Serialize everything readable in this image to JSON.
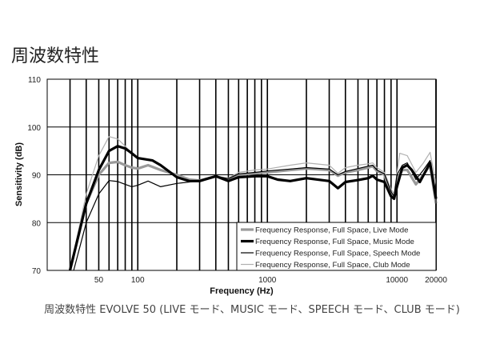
{
  "page_title": "周波数特性",
  "caption": "周波数特性 EVOLVE 50 (LIVE モード、MUSIC モード、SPEECH モード、CLUB モード)",
  "chart_data": {
    "type": "line",
    "title": "",
    "xlabel": "Frequency (Hz)",
    "ylabel": "Sensitivity (dB)",
    "xscale": "log",
    "xlim": [
      20,
      20000
    ],
    "ylim": [
      70,
      110
    ],
    "x_tick_labels": [
      "50",
      "100",
      "1000",
      "10000",
      "20000"
    ],
    "x_ticks": [
      50,
      100,
      1000,
      10000,
      20000
    ],
    "y_ticks": [
      70,
      80,
      90,
      100,
      110
    ],
    "grid": true,
    "legend_placement": "bottom-right",
    "series": [
      {
        "name": "Frequency Response, Full Space, Live Mode",
        "color": "#9a9a9a",
        "style": "thick",
        "x": [
          30,
          40,
          50,
          60,
          70,
          80,
          90,
          100,
          120,
          150,
          200,
          250,
          300,
          400,
          500,
          600,
          800,
          1000,
          1500,
          2000,
          3000,
          3500,
          4000,
          5000,
          6000,
          6500,
          7000,
          8000,
          9000,
          9500,
          10000,
          11000,
          12000,
          14000,
          16000,
          18000,
          20000
        ],
        "y": [
          70,
          84,
          90,
          92.5,
          92.7,
          92,
          91.5,
          91.3,
          92,
          91,
          90,
          89,
          88.8,
          89.7,
          89,
          90,
          90.3,
          90.5,
          91,
          91.3,
          91,
          89.8,
          90.5,
          91,
          91.5,
          91.8,
          90.8,
          90,
          86,
          85,
          89,
          91,
          91,
          88,
          90,
          92,
          84
        ]
      },
      {
        "name": "Frequency Response, Full Space, Music Mode",
        "color": "#000000",
        "style": "thick",
        "x": [
          30,
          40,
          50,
          60,
          70,
          80,
          90,
          100,
          130,
          150,
          200,
          250,
          300,
          400,
          500,
          600,
          800,
          1000,
          1200,
          1500,
          2000,
          3000,
          3500,
          4000,
          5000,
          6000,
          6500,
          7000,
          8000,
          9000,
          9500,
          10000,
          11000,
          12000,
          13000,
          15000,
          18000,
          20000
        ],
        "y": [
          70,
          84,
          91,
          95,
          96,
          95.5,
          94.5,
          93.5,
          93,
          92,
          89.5,
          88.7,
          88.7,
          89.7,
          88.7,
          89.5,
          89.7,
          89.7,
          89,
          88.7,
          89.3,
          88.7,
          87.2,
          88.5,
          88.9,
          89.3,
          89.8,
          89,
          88.5,
          85.5,
          85,
          87.5,
          91.5,
          92,
          91,
          88.5,
          92.5,
          85
        ]
      },
      {
        "name": "Frequency Response, Full Space, Speech Mode",
        "color": "#000000",
        "style": "thin",
        "x": [
          32,
          40,
          50,
          60,
          70,
          80,
          90,
          100,
          120,
          150,
          200,
          250,
          300,
          400,
          500,
          600,
          800,
          1000,
          1500,
          2000,
          3000,
          3500,
          4000,
          5000,
          6000,
          6500,
          7000,
          8000,
          9000,
          9500,
          10000,
          11000,
          12000,
          14000,
          16000,
          18000,
          20000
        ],
        "y": [
          70,
          80,
          86,
          88.8,
          88.6,
          88,
          87.5,
          87.8,
          88.7,
          87.5,
          88.2,
          88.5,
          88.8,
          89.7,
          89.2,
          90.2,
          90.5,
          90.8,
          91.2,
          91.5,
          91.2,
          90,
          90.7,
          91.3,
          91.8,
          92,
          91,
          90.2,
          86.5,
          85.5,
          90,
          92,
          92.5,
          89,
          91,
          93,
          85
        ]
      },
      {
        "name": "Frequency Response, Full Space, Club Mode",
        "color": "#b0b0b0",
        "style": "thin",
        "x": [
          30,
          40,
          50,
          60,
          70,
          80,
          90,
          100,
          130,
          150,
          200,
          250,
          300,
          400,
          500,
          600,
          800,
          1000,
          1500,
          2000,
          3000,
          3500,
          4000,
          5000,
          6000,
          6500,
          7000,
          8000,
          9000,
          9500,
          10500,
          12000,
          14000,
          16000,
          18000,
          20000
        ],
        "y": [
          70,
          86,
          94,
          98,
          97.5,
          96,
          94.5,
          93.5,
          93,
          92,
          89.8,
          89,
          88.8,
          89.7,
          89.3,
          90.5,
          91,
          91.2,
          92,
          92.5,
          92,
          90.3,
          91.5,
          92,
          92.3,
          92.5,
          91.5,
          90.5,
          87,
          86,
          94.5,
          94,
          90.5,
          92.5,
          94.7,
          88
        ]
      }
    ]
  }
}
